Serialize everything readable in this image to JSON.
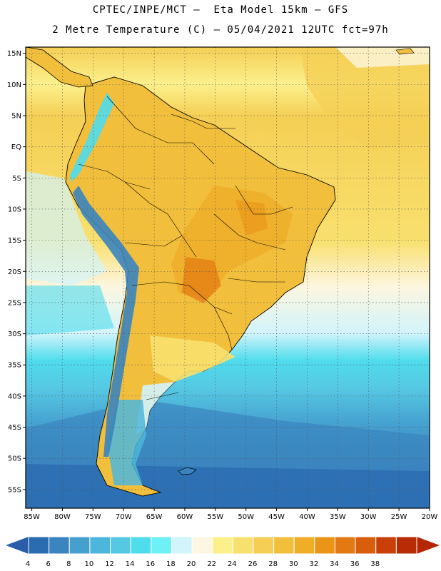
{
  "header": {
    "line1": "CPTEC/INPE/MCT –  Eta Model 15km – GFS",
    "line2": "2 Metre Temperature (C) – 05/04/2021 12UTC fct=97h"
  },
  "map": {
    "lat_labels": [
      "15N",
      "10N",
      "5N",
      "EQ",
      "5S",
      "10S",
      "15S",
      "20S",
      "25S",
      "30S",
      "35S",
      "40S",
      "45S",
      "50S",
      "55S"
    ],
    "lon_labels": [
      "85W",
      "80W",
      "75W",
      "70W",
      "65W",
      "60W",
      "55W",
      "50W",
      "45W",
      "40W",
      "35W",
      "30W",
      "25W",
      "20W"
    ],
    "lat_range": [
      -58,
      16
    ],
    "lon_range": [
      -86,
      -20
    ]
  },
  "colorbar": {
    "labels": [
      "4",
      "6",
      "8",
      "10",
      "12",
      "14",
      "16",
      "18",
      "20",
      "22",
      "24",
      "26",
      "28",
      "30",
      "32",
      "34",
      "36",
      "38"
    ],
    "colors": [
      "#2a6cb0",
      "#3a84bf",
      "#45a0cf",
      "#4db6dc",
      "#56c8e3",
      "#4fdcec",
      "#6ef0f7",
      "#d2f4fb",
      "#fdf6e0",
      "#fbf08c",
      "#f8e06e",
      "#f5cf55",
      "#f2bf3c",
      "#efad28",
      "#ea9418",
      "#e27912",
      "#d85e0c",
      "#c84008",
      "#b82c05"
    ],
    "left_cap": "#2a5ea8",
    "right_cap": "#b52605"
  }
}
